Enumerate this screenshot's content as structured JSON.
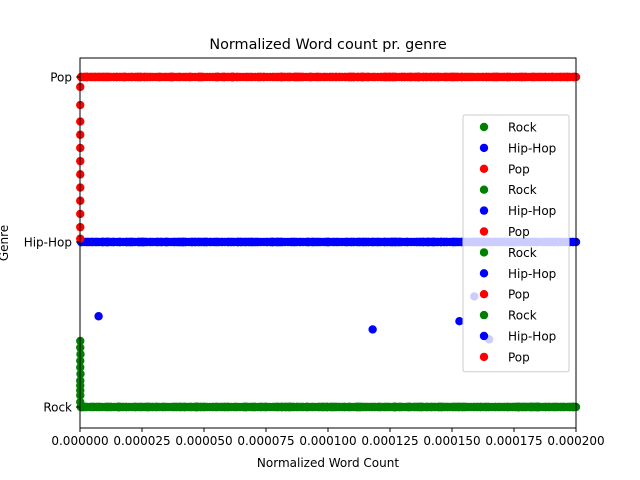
{
  "chart_data": {
    "type": "scatter",
    "title": "Normalized Word count pr. genre",
    "xlabel": "Normalized Word Count",
    "ylabel": "Genre",
    "xlim": [
      0,
      0.0002
    ],
    "x_ticks": [
      "0.000000",
      "0.000025",
      "0.000050",
      "0.000075",
      "0.000100",
      "0.000125",
      "0.000150",
      "0.000175",
      "0.000200"
    ],
    "y_categories": [
      "Rock",
      "Hip-Hop",
      "Pop"
    ],
    "grid": false,
    "legend_position": "right",
    "legend": [
      {
        "label": "Rock",
        "color": "#008000"
      },
      {
        "label": "Hip-Hop",
        "color": "#0000ff"
      },
      {
        "label": "Pop",
        "color": "#ff0000"
      },
      {
        "label": "Rock",
        "color": "#008000"
      },
      {
        "label": "Hip-Hop",
        "color": "#0000ff"
      },
      {
        "label": "Pop",
        "color": "#ff0000"
      },
      {
        "label": "Rock",
        "color": "#008000"
      },
      {
        "label": "Hip-Hop",
        "color": "#0000ff"
      },
      {
        "label": "Pop",
        "color": "#ff0000"
      },
      {
        "label": "Rock",
        "color": "#008000"
      },
      {
        "label": "Hip-Hop",
        "color": "#0000ff"
      },
      {
        "label": "Pop",
        "color": "#ff0000"
      }
    ],
    "series": [
      {
        "name": "Rock",
        "color": "#008000",
        "category": "Rock",
        "x_min": 3e-07,
        "x_max": 0.0002,
        "count": 280,
        "outliers": [
          [
            1e-07,
            0.4
          ],
          [
            1e-07,
            0.36
          ],
          [
            2e-07,
            0.32
          ],
          [
            1e-07,
            0.28
          ],
          [
            1e-07,
            0.24
          ],
          [
            2e-07,
            0.2
          ],
          [
            1e-07,
            0.16
          ],
          [
            1e-07,
            0.13
          ],
          [
            1e-07,
            0.1
          ],
          [
            1e-07,
            0.07
          ],
          [
            1e-07,
            0.03
          ]
        ]
      },
      {
        "name": "Hip-Hop",
        "color": "#0000ff",
        "category": "Hip-Hop",
        "x_min": 3e-07,
        "x_max": 0.0002,
        "count": 250,
        "outliers": [
          [
            7.5e-06,
            -0.45
          ],
          [
            0.000118,
            -0.53
          ],
          [
            0.000153,
            -0.48
          ],
          [
            0.000165,
            -0.59
          ],
          [
            0.000159,
            -0.33
          ]
        ]
      },
      {
        "name": "Pop",
        "color": "#ff0000",
        "category": "Pop",
        "x_min": 3e-07,
        "x_max": 0.0002,
        "count": 260,
        "outliers": [
          [
            1e-07,
            -0.06
          ],
          [
            1e-07,
            -0.17
          ],
          [
            1e-07,
            -0.27
          ],
          [
            1e-07,
            -0.35
          ],
          [
            1e-07,
            -0.43
          ],
          [
            1e-07,
            -0.51
          ],
          [
            1e-07,
            -0.59
          ],
          [
            1e-07,
            -0.67
          ],
          [
            1e-07,
            -0.75
          ],
          [
            1e-07,
            -0.83
          ],
          [
            1e-07,
            -0.91
          ],
          [
            1e-07,
            -0.98
          ]
        ]
      }
    ]
  }
}
